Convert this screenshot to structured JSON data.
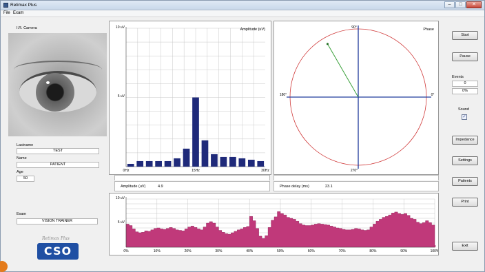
{
  "window": {
    "title": "Retimax Plus",
    "buttons": [
      "–",
      "□",
      "✕"
    ]
  },
  "menu": {
    "file": "File",
    "exam": "Exam"
  },
  "camera": {
    "label": "I.R. Camera"
  },
  "patient": {
    "lastname_label": "Lastname",
    "lastname": "TEST",
    "name_label": "Name",
    "name": "PATIENT",
    "age_label": "Age",
    "age": "50",
    "exam_label": "Exam",
    "exam": "VISION TRAINER"
  },
  "logo": {
    "tagline": "Retimax Plus",
    "mark": "CSO"
  },
  "amplitude_chart": {
    "title": "Amplitude (uV)",
    "y_ticks": [
      "10 uV",
      "5 uV"
    ],
    "x_ticks": [
      "0Hz",
      "15Hz",
      "30Hz"
    ]
  },
  "phase_chart": {
    "title": "Phase",
    "labels": {
      "top": "90°",
      "left": "180°",
      "right": "0°",
      "bottom": "270°"
    },
    "colors": {
      "circle": "#d03a3a",
      "axes": "#1f3a9c",
      "vector": "#3aa03a"
    }
  },
  "readouts": {
    "amplitude_label": "Amplitude (uV)",
    "amplitude_value": "4.9",
    "phase_label": "Phase delay (ms)",
    "phase_value": "23.1"
  },
  "trend_chart": {
    "y_ticks": [
      "10 uV",
      "5 uV"
    ],
    "x_ticks": [
      "0%",
      "10%",
      "20%",
      "30%",
      "40%",
      "50%",
      "60%",
      "70%",
      "80%",
      "90%",
      "100%"
    ]
  },
  "controls": {
    "start": "Start",
    "pause": "Pause",
    "events_label": "Events",
    "events_count": "0",
    "events_percent": "0%",
    "sound_label": "Sound",
    "sound_checked": "✓",
    "impedance": "Impedance",
    "settings": "Settings",
    "patients": "Patients",
    "print": "Print",
    "exit": "Exit"
  },
  "chart_data": [
    {
      "type": "bar",
      "title": "Amplitude (uV)",
      "x": [
        1,
        3,
        5,
        7,
        9,
        11,
        13,
        15,
        17,
        19,
        21,
        23,
        25,
        27,
        29
      ],
      "values": [
        0.2,
        0.4,
        0.4,
        0.4,
        0.4,
        0.6,
        1.3,
        5.0,
        1.9,
        0.9,
        0.7,
        0.7,
        0.6,
        0.5,
        0.4
      ],
      "xlim": [
        0,
        30
      ],
      "ylim": [
        0,
        10
      ],
      "color": "#1f2a7a"
    },
    {
      "type": "area",
      "x": [
        0,
        1,
        2,
        3,
        4,
        5,
        6,
        7,
        8,
        9,
        10,
        11,
        12,
        13,
        14,
        15,
        16,
        17,
        18,
        19,
        20,
        21,
        22,
        23,
        24,
        25,
        26,
        27,
        28,
        29,
        30,
        31,
        32,
        33,
        34,
        35,
        36,
        37,
        38,
        39,
        40,
        41,
        42,
        43,
        44,
        45,
        46,
        47,
        48,
        49,
        50,
        51,
        52,
        53,
        54,
        55,
        56,
        57,
        58,
        59,
        60,
        61,
        62,
        63,
        64,
        65,
        66,
        67,
        68,
        69,
        70,
        71,
        72,
        73,
        74,
        75,
        76,
        77,
        78,
        79,
        80,
        81,
        82,
        83,
        84,
        85,
        86,
        87,
        88,
        89,
        90,
        91,
        92,
        93,
        94,
        95,
        96,
        97,
        98,
        99,
        100
      ],
      "values": [
        4.8,
        4.5,
        3.8,
        3.2,
        3.0,
        3.1,
        3.4,
        3.3,
        3.6,
        3.9,
        4.0,
        3.8,
        3.7,
        3.9,
        4.1,
        3.9,
        3.6,
        3.5,
        3.4,
        3.8,
        4.2,
        4.4,
        4.1,
        3.8,
        3.6,
        4.2,
        5.0,
        5.3,
        5.0,
        4.2,
        3.5,
        3.1,
        2.8,
        2.7,
        3.0,
        3.3,
        3.6,
        3.8,
        4.1,
        4.3,
        6.4,
        5.5,
        3.9,
        2.3,
        1.8,
        2.4,
        4.1,
        5.6,
        6.3,
        7.4,
        7.0,
        6.7,
        6.2,
        6.0,
        5.8,
        5.4,
        4.9,
        4.6,
        4.5,
        4.5,
        4.6,
        4.8,
        4.9,
        4.8,
        4.7,
        4.6,
        4.4,
        4.2,
        4.0,
        3.9,
        3.7,
        3.6,
        3.6,
        3.7,
        3.9,
        3.8,
        3.6,
        3.5,
        3.6,
        4.2,
        4.8,
        5.4,
        5.8,
        6.2,
        6.4,
        6.7,
        7.1,
        7.3,
        7.0,
        6.8,
        7.0,
        6.6,
        6.0,
        5.8,
        5.2,
        4.9,
        5.1,
        5.5,
        5.1,
        4.6,
        0.4
      ],
      "xlim": [
        0,
        100
      ],
      "ylim": [
        0,
        10
      ],
      "color": "#c0397a"
    },
    {
      "type": "scatter",
      "title": "Phase",
      "vector_angle_deg": 120,
      "vector_magnitude": 0.9
    }
  ]
}
